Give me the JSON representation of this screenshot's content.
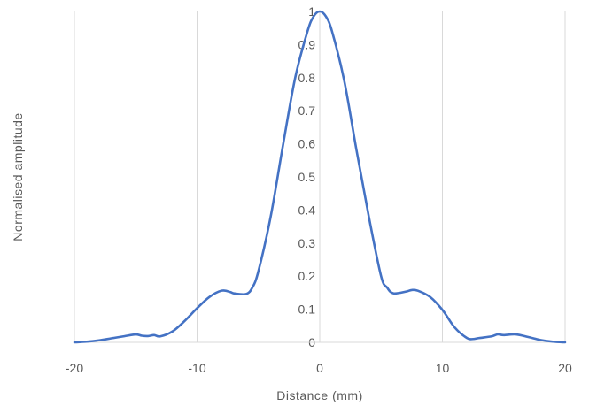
{
  "chart_data": {
    "type": "line",
    "title": "",
    "xlabel": "Distance (mm)",
    "ylabel": "Normalised amplitude",
    "xlim": [
      -20,
      20
    ],
    "ylim": [
      0,
      1
    ],
    "x_ticks": [
      -20,
      -10,
      0,
      10,
      20
    ],
    "y_ticks": [
      0,
      0.1,
      0.2,
      0.3,
      0.4,
      0.5,
      0.6,
      0.7,
      0.8,
      0.9,
      1
    ],
    "grid": "vertical",
    "legend": "none",
    "color": "#4472c4",
    "series": [
      {
        "x": [
          -20,
          -19,
          -18,
          -17,
          -16,
          -15,
          -14.5,
          -14,
          -13.5,
          -13,
          -12,
          -11,
          -10,
          -9,
          -8,
          -7.3,
          -7,
          -6,
          -5.5,
          -5,
          -4,
          -3,
          -2,
          -1,
          -0.5,
          0,
          0.5,
          1,
          2,
          3,
          4,
          5,
          5.5,
          6,
          7,
          7.5,
          8,
          9,
          10,
          11,
          12,
          12.5,
          13,
          14,
          14.5,
          15,
          16,
          17,
          18,
          19,
          20
        ],
        "y": [
          0,
          0.002,
          0.006,
          0.012,
          0.018,
          0.024,
          0.02,
          0.019,
          0.022,
          0.018,
          0.033,
          0.065,
          0.103,
          0.137,
          0.156,
          0.152,
          0.148,
          0.146,
          0.165,
          0.215,
          0.38,
          0.595,
          0.8,
          0.94,
          0.985,
          1,
          0.985,
          0.94,
          0.79,
          0.58,
          0.38,
          0.2,
          0.165,
          0.148,
          0.153,
          0.158,
          0.156,
          0.137,
          0.098,
          0.045,
          0.013,
          0.01,
          0.013,
          0.018,
          0.024,
          0.022,
          0.024,
          0.016,
          0.007,
          0.002,
          0
        ]
      }
    ]
  }
}
